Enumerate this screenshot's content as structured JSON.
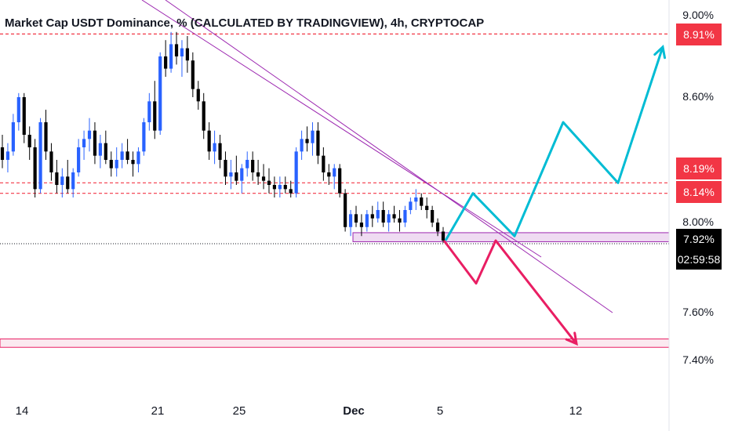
{
  "title": "Market Cap USDT Dominance, % (CALCULATED BY TRADINGVIEW), 4h, CRYPTOCAP",
  "chart_data": {
    "type": "candlestick",
    "symbol": "USDT.D",
    "interval": "4h",
    "y_unit": "%",
    "ylim": [
      7.3,
      9.02
    ],
    "y_ticks": [
      "9.00%",
      "8.60%",
      "8.00%",
      "7.60%",
      "7.40%"
    ],
    "y_tick_values": [
      9.0,
      8.6,
      8.0,
      7.6,
      7.4
    ],
    "x_ticks": [
      {
        "label": "14",
        "bold": false
      },
      {
        "label": "21",
        "bold": false
      },
      {
        "label": "25",
        "bold": false
      },
      {
        "label": "Dec",
        "bold": true
      },
      {
        "label": "5",
        "bold": false
      },
      {
        "label": "12",
        "bold": false
      }
    ],
    "price_labels": {
      "resistance_high": "8.91%",
      "level_a": "8.19%",
      "level_b": "8.14%",
      "current_price": "7.92%",
      "countdown": "02:59:58"
    },
    "levels": {
      "resistance_high": 8.91,
      "level_a": 8.19,
      "level_b": 8.14,
      "current_price": 7.92
    },
    "support_zones": [
      {
        "from": 7.915,
        "to": 7.955,
        "color": "#e1bee7"
      },
      {
        "from": 7.455,
        "to": 7.49,
        "color": "#f8d7e3"
      }
    ],
    "candles": [
      [
        8.36,
        8.42,
        8.26,
        8.3
      ],
      [
        8.3,
        8.38,
        8.24,
        8.34
      ],
      [
        8.34,
        8.52,
        8.32,
        8.48
      ],
      [
        8.48,
        8.62,
        8.44,
        8.6
      ],
      [
        8.6,
        8.62,
        8.38,
        8.42
      ],
      [
        8.42,
        8.46,
        8.3,
        8.36
      ],
      [
        8.36,
        8.4,
        8.12,
        8.16
      ],
      [
        8.16,
        8.5,
        8.14,
        8.48
      ],
      [
        8.48,
        8.54,
        8.3,
        8.34
      ],
      [
        8.34,
        8.38,
        8.2,
        8.24
      ],
      [
        8.24,
        8.3,
        8.14,
        8.18
      ],
      [
        8.18,
        8.26,
        8.12,
        8.22
      ],
      [
        8.22,
        8.3,
        8.14,
        8.16
      ],
      [
        8.16,
        8.26,
        8.12,
        8.24
      ],
      [
        8.24,
        8.4,
        8.22,
        8.36
      ],
      [
        8.36,
        8.44,
        8.3,
        8.4
      ],
      [
        8.4,
        8.5,
        8.34,
        8.44
      ],
      [
        8.44,
        8.48,
        8.28,
        8.32
      ],
      [
        8.32,
        8.42,
        8.26,
        8.38
      ],
      [
        8.38,
        8.44,
        8.28,
        8.3
      ],
      [
        8.3,
        8.34,
        8.22,
        8.26
      ],
      [
        8.26,
        8.36,
        8.22,
        8.3
      ],
      [
        8.3,
        8.38,
        8.26,
        8.34
      ],
      [
        8.34,
        8.4,
        8.28,
        8.3
      ],
      [
        8.3,
        8.34,
        8.22,
        8.28
      ],
      [
        8.28,
        8.36,
        8.24,
        8.34
      ],
      [
        8.34,
        8.5,
        8.32,
        8.48
      ],
      [
        8.48,
        8.62,
        8.44,
        8.58
      ],
      [
        8.58,
        8.68,
        8.4,
        8.44
      ],
      [
        8.44,
        8.82,
        8.42,
        8.8
      ],
      [
        8.8,
        8.88,
        8.7,
        8.74
      ],
      [
        8.74,
        8.92,
        8.72,
        8.86
      ],
      [
        8.86,
        8.92,
        8.76,
        8.8
      ],
      [
        8.8,
        8.88,
        8.7,
        8.84
      ],
      [
        8.84,
        8.9,
        8.72,
        8.78
      ],
      [
        8.78,
        8.82,
        8.6,
        8.64
      ],
      [
        8.64,
        8.68,
        8.54,
        8.58
      ],
      [
        8.58,
        8.62,
        8.4,
        8.44
      ],
      [
        8.44,
        8.48,
        8.3,
        8.34
      ],
      [
        8.34,
        8.44,
        8.28,
        8.38
      ],
      [
        8.38,
        8.42,
        8.26,
        8.3
      ],
      [
        8.3,
        8.34,
        8.18,
        8.22
      ],
      [
        8.22,
        8.3,
        8.16,
        8.24
      ],
      [
        8.24,
        8.32,
        8.18,
        8.2
      ],
      [
        8.2,
        8.28,
        8.14,
        8.26
      ],
      [
        8.26,
        8.34,
        8.22,
        8.3
      ],
      [
        8.3,
        8.34,
        8.2,
        8.24
      ],
      [
        8.24,
        8.3,
        8.18,
        8.22
      ],
      [
        8.22,
        8.28,
        8.16,
        8.2
      ],
      [
        8.2,
        8.26,
        8.14,
        8.18
      ],
      [
        8.18,
        8.22,
        8.12,
        8.16
      ],
      [
        8.16,
        8.22,
        8.12,
        8.18
      ],
      [
        8.18,
        8.22,
        8.14,
        8.16
      ],
      [
        8.16,
        8.2,
        8.12,
        8.14
      ],
      [
        8.14,
        8.36,
        8.12,
        8.34
      ],
      [
        8.34,
        8.44,
        8.3,
        8.4
      ],
      [
        8.4,
        8.46,
        8.34,
        8.38
      ],
      [
        8.38,
        8.48,
        8.32,
        8.44
      ],
      [
        8.44,
        8.48,
        8.28,
        8.32
      ],
      [
        8.32,
        8.36,
        8.2,
        8.24
      ],
      [
        8.24,
        8.28,
        8.18,
        8.22
      ],
      [
        8.22,
        8.28,
        8.16,
        8.26
      ],
      [
        8.26,
        8.28,
        8.12,
        8.14
      ],
      [
        8.14,
        8.16,
        7.96,
        7.98
      ],
      [
        7.98,
        8.06,
        7.94,
        8.04
      ],
      [
        8.04,
        8.08,
        7.98,
        8.0
      ],
      [
        8.0,
        8.04,
        7.94,
        7.98
      ],
      [
        7.98,
        8.06,
        7.96,
        8.04
      ],
      [
        8.04,
        8.08,
        7.98,
        8.02
      ],
      [
        8.02,
        8.1,
        8.0,
        8.06
      ],
      [
        8.06,
        8.1,
        7.98,
        8.0
      ],
      [
        8.0,
        8.06,
        7.96,
        8.04
      ],
      [
        8.04,
        8.08,
        8.0,
        8.02
      ],
      [
        8.02,
        8.06,
        7.96,
        8.0
      ],
      [
        8.0,
        8.08,
        7.98,
        8.06
      ],
      [
        8.06,
        8.12,
        8.04,
        8.1
      ],
      [
        8.1,
        8.16,
        8.06,
        8.12
      ],
      [
        8.12,
        8.14,
        8.06,
        8.08
      ],
      [
        8.08,
        8.12,
        8.02,
        8.06
      ],
      [
        8.06,
        8.08,
        7.98,
        8.0
      ],
      [
        8.0,
        8.02,
        7.94,
        7.96
      ],
      [
        7.96,
        7.98,
        7.91,
        7.92
      ]
    ],
    "trendlines": [
      {
        "from": [
          "11/14",
          9.02
        ],
        "to": [
          "Dec 12",
          7.7
        ],
        "color": "#9c27b0"
      },
      {
        "from": [
          "11/19",
          9.02
        ],
        "to": [
          "Dec 14",
          7.62
        ],
        "color": "#9c27b0"
      }
    ],
    "projections": [
      {
        "name": "bullish",
        "color": "#00bcd4",
        "points": [
          7.92,
          8.14,
          7.94,
          8.48,
          8.19,
          8.88
        ]
      },
      {
        "name": "bearish",
        "color": "#e91e63",
        "points": [
          7.92,
          7.73,
          7.92,
          7.47
        ]
      }
    ]
  }
}
